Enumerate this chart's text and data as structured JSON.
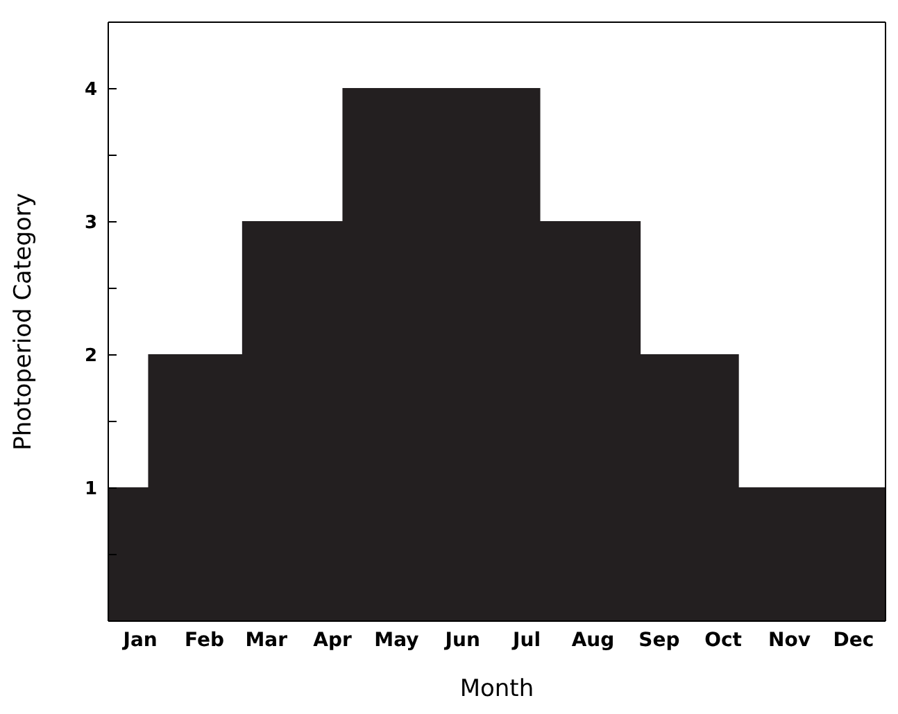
{
  "chart_data": {
    "type": "area",
    "xlabel": "Month",
    "ylabel": "Photoperiod Category",
    "x": [
      "--01-01",
      "--01-20",
      "--01-20",
      "--03-05",
      "--03-05",
      "--04-21",
      "--04-21",
      "--07-22",
      "--07-22",
      "--09-07",
      "--09-07",
      "--10-23",
      "--10-23",
      "--12-31"
    ],
    "series": [
      {
        "color": "#231f20",
        "values": [
          1,
          1,
          2,
          2,
          3,
          3,
          4,
          4,
          3,
          3,
          2,
          2,
          1,
          1
        ]
      }
    ],
    "xlim": [
      "--01-01",
      "--12-31"
    ],
    "xticks": [
      {
        "value": "--01-16",
        "label": "Jan"
      },
      {
        "value": "--02-15",
        "label": "Feb"
      },
      {
        "value": "--03-16",
        "label": "Mar"
      },
      {
        "value": "--04-16",
        "label": "Apr"
      },
      {
        "value": "--05-16",
        "label": "May"
      },
      {
        "value": "--06-16",
        "label": "Jun"
      },
      {
        "value": "--07-16",
        "label": "Jul"
      },
      {
        "value": "--08-16",
        "label": "Aug"
      },
      {
        "value": "--09-16",
        "label": "Sep"
      },
      {
        "value": "--10-16",
        "label": "Oct"
      },
      {
        "value": "--11-16",
        "label": "Nov"
      },
      {
        "value": "--12-16",
        "label": "Dec"
      }
    ],
    "ylim": [
      0,
      4.5
    ],
    "yticks": [
      {
        "value": 0.5,
        "label": null
      },
      1,
      {
        "value": 1.5,
        "label": null
      },
      2,
      {
        "value": 2.5,
        "label": null
      },
      3,
      {
        "value": 3.5,
        "label": null
      },
      4
    ]
  }
}
